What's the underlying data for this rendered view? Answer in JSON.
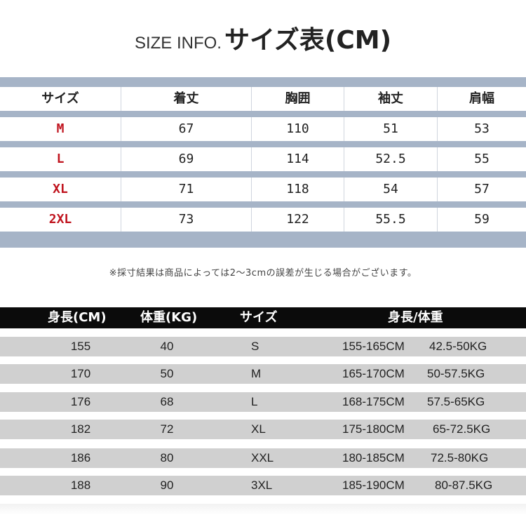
{
  "title": {
    "en": "SIZE INFO.",
    "ja": "サイズ表(CM)"
  },
  "size_table": {
    "headers": [
      "サイズ",
      "着丈",
      "胸囲",
      "袖丈",
      "肩幅"
    ],
    "rows": [
      [
        "M",
        "67",
        "110",
        "51",
        "53"
      ],
      [
        "L",
        "69",
        "114",
        "52.5",
        "55"
      ],
      [
        "XL",
        "71",
        "118",
        "54",
        "57"
      ],
      [
        "2XL",
        "73",
        "122",
        "55.5",
        "59"
      ]
    ]
  },
  "note": "※採寸結果は商品によっては2～3cmの誤差が生じる場合がございます。",
  "guide_table": {
    "headers": [
      "身長(CM)",
      "体重(KG)",
      "サイズ",
      "身長/体重"
    ],
    "rows": [
      [
        "155",
        "40",
        "S",
        "155-165CM",
        "42.5-50KG"
      ],
      [
        "170",
        "50",
        "M",
        "165-170CM",
        "50-57.5KG"
      ],
      [
        "176",
        "68",
        "L",
        "168-175CM",
        "57.5-65KG"
      ],
      [
        "182",
        "72",
        "XL",
        "175-180CM",
        "65-72.5KG"
      ],
      [
        "186",
        "80",
        "XXL",
        "180-185CM",
        "72.5-80KG"
      ],
      [
        "188",
        "90",
        "3XL",
        "185-190CM",
        "80-87.5KG"
      ]
    ]
  },
  "colors": {
    "table_band": "#a6b4c7",
    "size_label": "#c0141e",
    "guide_header": "#0b0b0b",
    "guide_row": "#d0d0d0"
  }
}
